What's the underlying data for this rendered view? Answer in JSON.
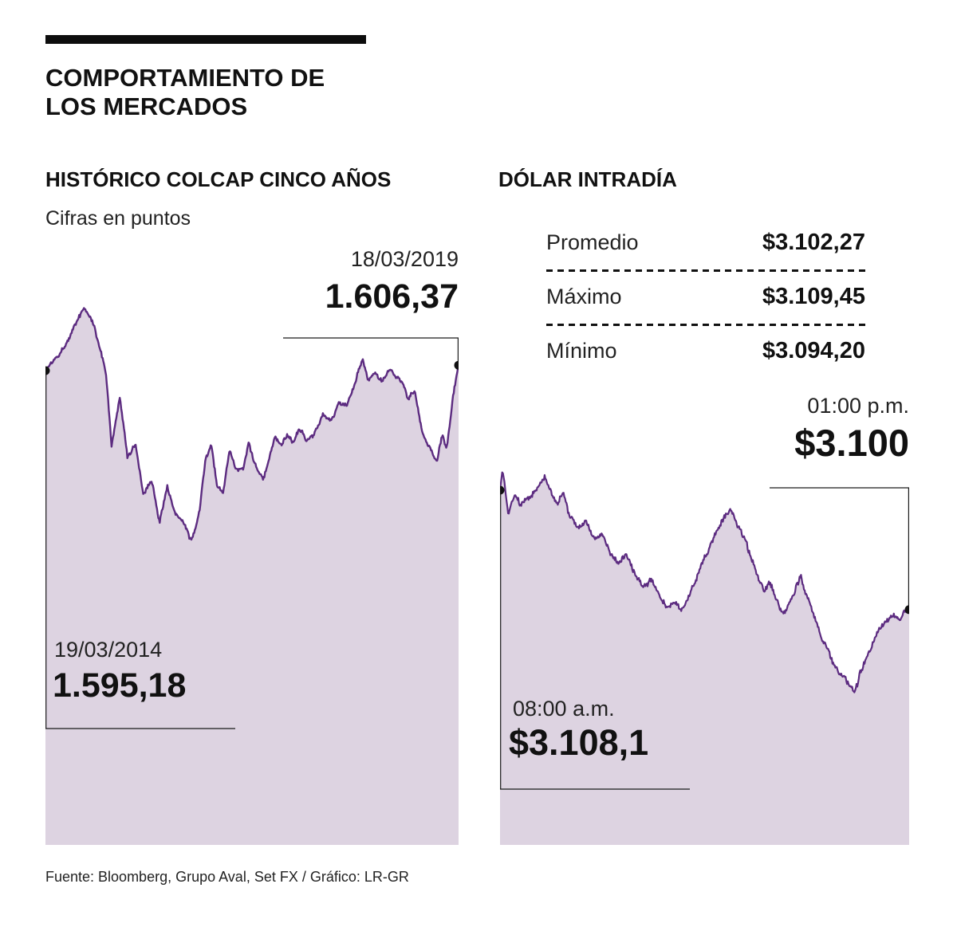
{
  "page": {
    "title_line1": "COMPORTAMIENTO DE",
    "title_line2": "LOS MERCADOS",
    "footer": "Fuente: Bloomberg, Grupo Aval, Set FX / Gráfico: LR-GR"
  },
  "colcap": {
    "title": "HISTÓRICO COLCAP CINCO AÑOS",
    "subtitle": "Cifras en puntos",
    "end_date": "18/03/2019",
    "end_value_label": "1.606,37",
    "start_date": "19/03/2014",
    "start_value_label": "1.595,18"
  },
  "dolar": {
    "title": "DÓLAR INTRADÍA",
    "stats": [
      {
        "label": "Promedio",
        "value": "$3.102,27"
      },
      {
        "label": "Máximo",
        "value": "$3.109,45"
      },
      {
        "label": "Mínimo",
        "value": "$3.094,20"
      }
    ],
    "end_time": "01:00 p.m.",
    "end_value_label": "$3.100",
    "start_time": "08:00 a.m.",
    "start_value_label": "$3.108,1"
  },
  "chart_data": [
    {
      "id": "colcap-chart",
      "type": "area",
      "title": "HISTÓRICO COLCAP CINCO AÑOS",
      "units": "puntos",
      "x_start_label": "19/03/2014",
      "x_end_label": "18/03/2019",
      "x_unit": "fraction of date range",
      "start_value": 1595.18,
      "end_value": 1606.37,
      "ylim": [
        1220,
        1760
      ],
      "grid": false,
      "legend": "none",
      "line_color": "#5c2b80",
      "fill_color": "#ddd3e1",
      "marker_color": "#111111",
      "points": [
        [
          0,
          1595.18
        ],
        [
          0.044,
          1645
        ],
        [
          0.073,
          1690
        ],
        [
          0.093,
          1726
        ],
        [
          0.118,
          1688
        ],
        [
          0.147,
          1587
        ],
        [
          0.16,
          1439
        ],
        [
          0.18,
          1538
        ],
        [
          0.199,
          1414
        ],
        [
          0.218,
          1447
        ],
        [
          0.237,
          1341
        ],
        [
          0.257,
          1373
        ],
        [
          0.276,
          1283
        ],
        [
          0.295,
          1357
        ],
        [
          0.315,
          1299
        ],
        [
          0.334,
          1283
        ],
        [
          0.353,
          1242
        ],
        [
          0.373,
          1308
        ],
        [
          0.388,
          1414
        ],
        [
          0.402,
          1439
        ],
        [
          0.415,
          1360
        ],
        [
          0.43,
          1344
        ],
        [
          0.446,
          1431
        ],
        [
          0.459,
          1390
        ],
        [
          0.479,
          1398
        ],
        [
          0.492,
          1447
        ],
        [
          0.508,
          1398
        ],
        [
          0.527,
          1373
        ],
        [
          0.542,
          1414
        ],
        [
          0.556,
          1455
        ],
        [
          0.569,
          1439
        ],
        [
          0.585,
          1464
        ],
        [
          0.6,
          1447
        ],
        [
          0.614,
          1472
        ],
        [
          0.633,
          1447
        ],
        [
          0.652,
          1472
        ],
        [
          0.672,
          1505
        ],
        [
          0.691,
          1488
        ],
        [
          0.71,
          1529
        ],
        [
          0.73,
          1521
        ],
        [
          0.749,
          1570
        ],
        [
          0.768,
          1620
        ],
        [
          0.782,
          1570
        ],
        [
          0.797,
          1595
        ],
        [
          0.813,
          1579
        ],
        [
          0.832,
          1600
        ],
        [
          0.846,
          1587
        ],
        [
          0.865,
          1570
        ],
        [
          0.878,
          1538
        ],
        [
          0.894,
          1554
        ],
        [
          0.913,
          1464
        ],
        [
          0.932,
          1439
        ],
        [
          0.948,
          1403
        ],
        [
          0.961,
          1464
        ],
        [
          0.971,
          1436
        ],
        [
          0.986,
          1538
        ],
        [
          1,
          1606.37
        ]
      ]
    },
    {
      "id": "dolar-chart",
      "type": "area",
      "title": "DÓLAR INTRADÍA",
      "x_start_label": "08:00 a.m.",
      "x_end_label": "01:00 p.m.",
      "x_unit": "fraction of time range",
      "start_value": 3108.1,
      "end_value": 3100.0,
      "promedio": 3102.27,
      "maximo": 3109.45,
      "minimo": 3094.2,
      "ylim": [
        3092,
        3111
      ],
      "grid": false,
      "legend": "none",
      "line_color": "#5c2b80",
      "fill_color": "#ddd3e1",
      "marker_color": "#111111",
      "points": [
        [
          0,
          3108.1
        ],
        [
          0.006,
          3109.45
        ],
        [
          0.02,
          3106.6
        ],
        [
          0.035,
          3107.8
        ],
        [
          0.05,
          3106.9
        ],
        [
          0.07,
          3107.5
        ],
        [
          0.09,
          3108.2
        ],
        [
          0.11,
          3109.0
        ],
        [
          0.125,
          3108.1
        ],
        [
          0.14,
          3107.3
        ],
        [
          0.155,
          3108.0
        ],
        [
          0.17,
          3106.4
        ],
        [
          0.19,
          3105.4
        ],
        [
          0.21,
          3106.1
        ],
        [
          0.23,
          3104.7
        ],
        [
          0.25,
          3105.2
        ],
        [
          0.27,
          3103.9
        ],
        [
          0.29,
          3103.3
        ],
        [
          0.31,
          3103.7
        ],
        [
          0.33,
          3102.4
        ],
        [
          0.35,
          3101.5
        ],
        [
          0.37,
          3102.1
        ],
        [
          0.39,
          3100.8
        ],
        [
          0.41,
          3100.1
        ],
        [
          0.43,
          3100.6
        ],
        [
          0.445,
          3099.8
        ],
        [
          0.46,
          3100.9
        ],
        [
          0.475,
          3101.8
        ],
        [
          0.49,
          3102.9
        ],
        [
          0.51,
          3104.1
        ],
        [
          0.53,
          3105.3
        ],
        [
          0.55,
          3106.3
        ],
        [
          0.565,
          3106.9
        ],
        [
          0.58,
          3105.8
        ],
        [
          0.6,
          3104.6
        ],
        [
          0.615,
          3103.4
        ],
        [
          0.63,
          3102.2
        ],
        [
          0.645,
          3101.3
        ],
        [
          0.66,
          3101.9
        ],
        [
          0.675,
          3100.7
        ],
        [
          0.69,
          3099.6
        ],
        [
          0.705,
          3100.3
        ],
        [
          0.72,
          3101.2
        ],
        [
          0.735,
          3102.3
        ],
        [
          0.75,
          3101.0
        ],
        [
          0.77,
          3099.3
        ],
        [
          0.79,
          3097.8
        ],
        [
          0.81,
          3096.6
        ],
        [
          0.83,
          3095.6
        ],
        [
          0.85,
          3094.9
        ],
        [
          0.865,
          3094.2
        ],
        [
          0.88,
          3095.5
        ],
        [
          0.9,
          3097.0
        ],
        [
          0.92,
          3098.3
        ],
        [
          0.94,
          3099.1
        ],
        [
          0.96,
          3099.6
        ],
        [
          0.98,
          3099.4
        ],
        [
          1,
          3100.0
        ]
      ]
    }
  ]
}
